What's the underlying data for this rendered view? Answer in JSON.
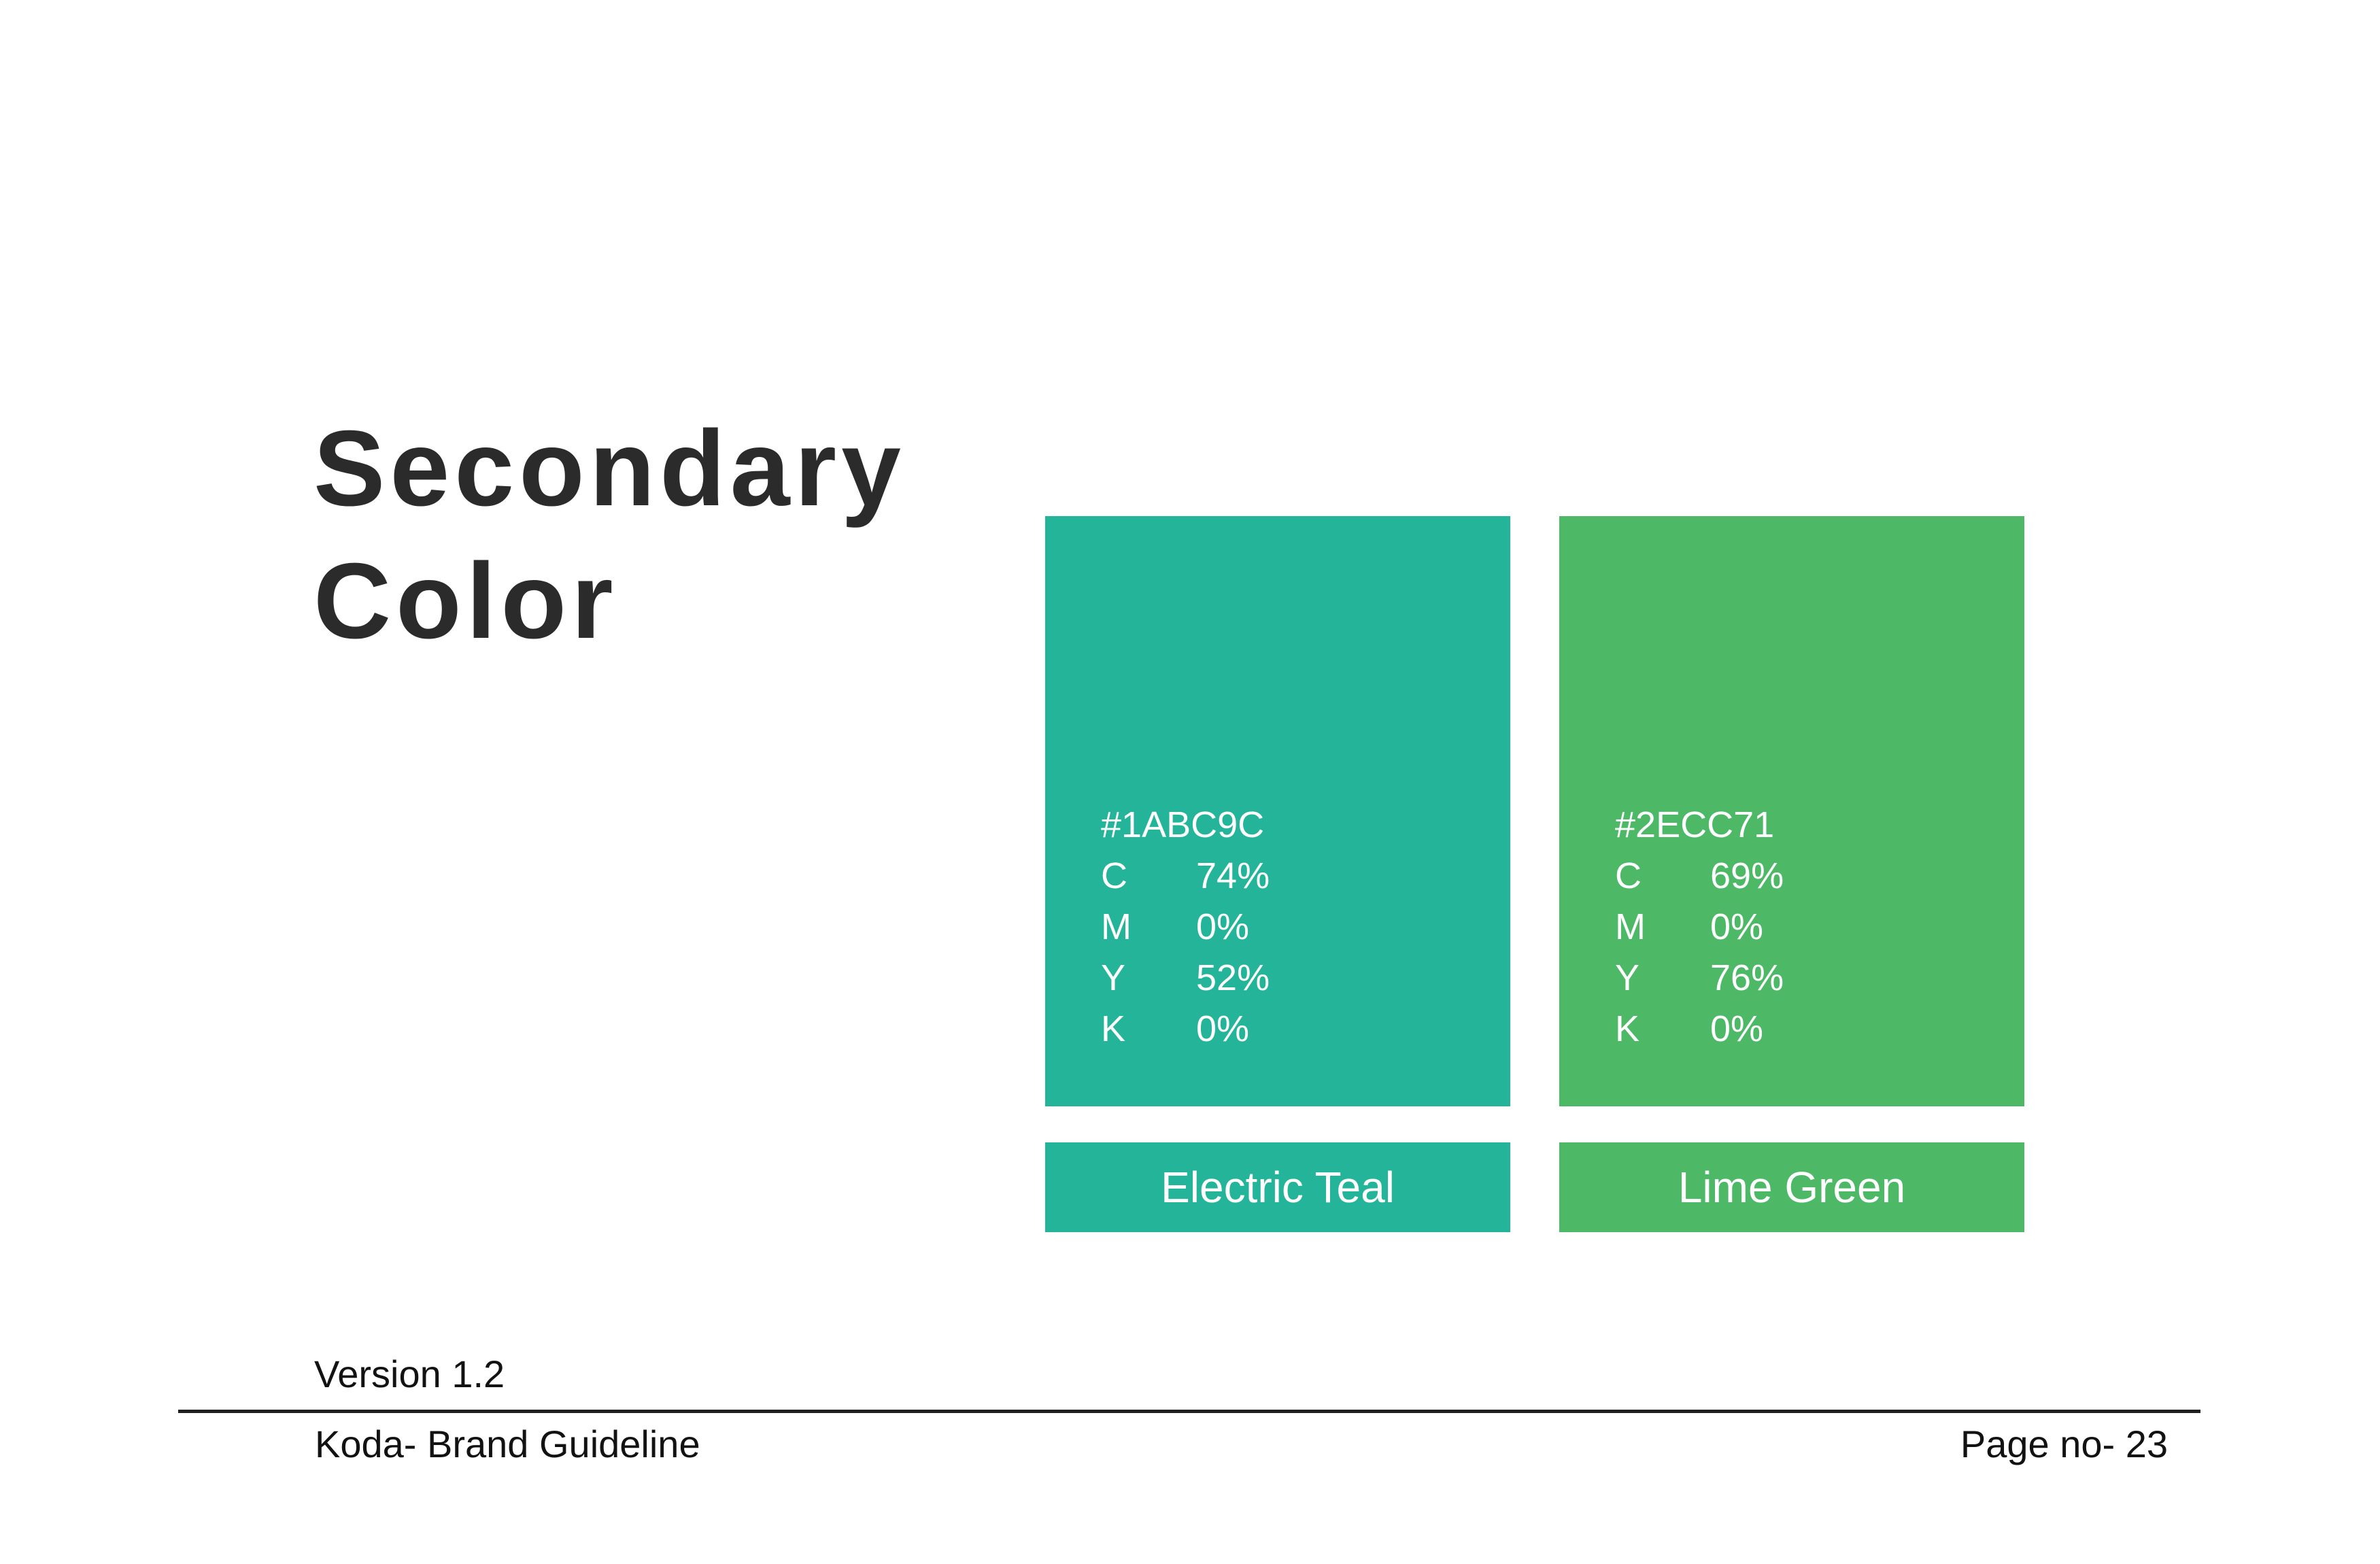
{
  "title": {
    "line1": "Secondary",
    "line2": "Color"
  },
  "colors": {
    "background": "#FFFFFF",
    "teal_display": "#23B499",
    "green_display": "#4DB967",
    "title_text": "#2B2B2B",
    "footer_text": "#121212",
    "rule": "#1F1F1F",
    "swatch_text": "#FFFFFF"
  },
  "swatches": [
    {
      "label": "Electric Teal",
      "hex": "#1ABC9C",
      "rows": [
        {
          "key": "C",
          "value": "74%"
        },
        {
          "key": "M",
          "value": "0%"
        },
        {
          "key": "Y",
          "value": "52%"
        },
        {
          "key": "K",
          "value": "0%"
        }
      ]
    },
    {
      "label": "Lime Green",
      "hex": "#2ECC71",
      "rows": [
        {
          "key": "C",
          "value": "69%"
        },
        {
          "key": "M",
          "value": "0%"
        },
        {
          "key": "Y",
          "value": "76%"
        },
        {
          "key": "K",
          "value": "0%"
        }
      ]
    }
  ],
  "footer": {
    "version": "Version 1.2",
    "document": "Koda- Brand Guideline",
    "page": "Page no- 23"
  }
}
